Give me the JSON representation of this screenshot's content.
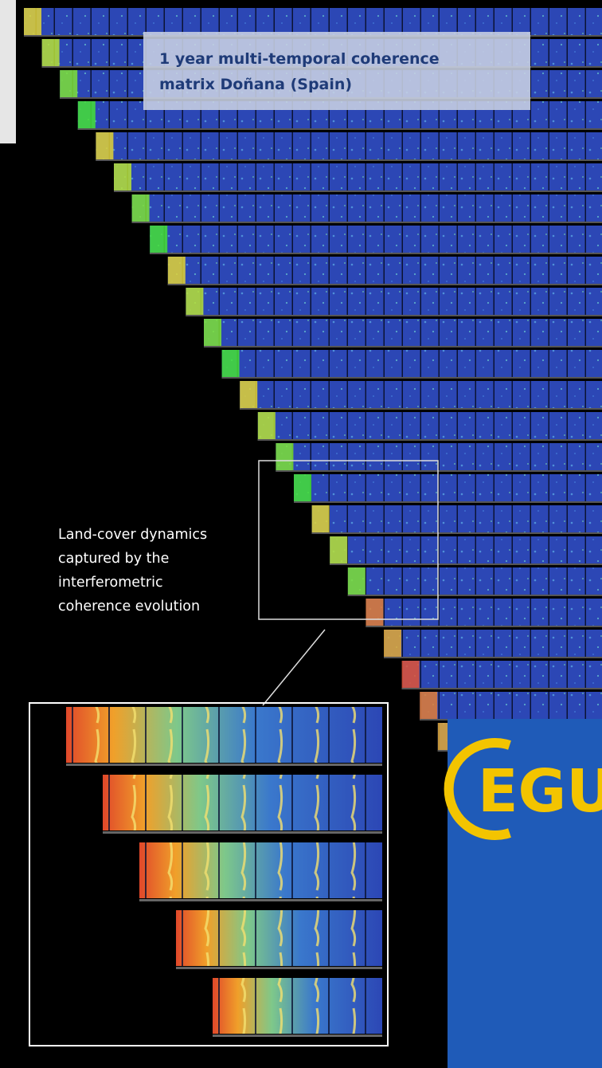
{
  "title": {
    "lines": [
      "1 year multi-temporal coherence",
      "matrix Doñana (Spain)"
    ]
  },
  "annotation": {
    "lines": [
      "Land-cover dynamics",
      "captured by the",
      "interferometric",
      "coherence evolution"
    ]
  },
  "logo": {
    "text": "EGU"
  }
}
